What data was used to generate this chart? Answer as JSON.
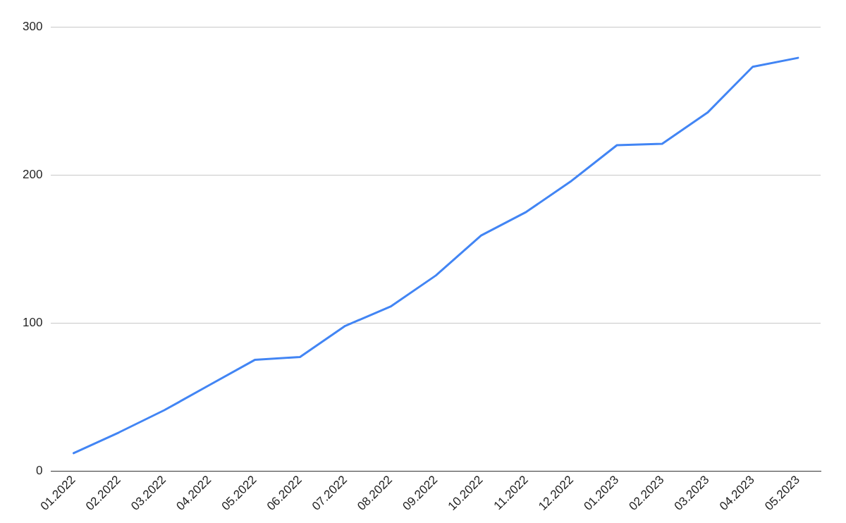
{
  "chart_data": {
    "type": "line",
    "categories": [
      "01.2022",
      "02.2022",
      "03.2022",
      "04.2022",
      "05.2022",
      "06.2022",
      "07.2022",
      "08.2022",
      "09.2022",
      "10.2022",
      "11.2022",
      "12.2022",
      "01.2023",
      "02.2023",
      "03.2023",
      "04.2023",
      "05.2023"
    ],
    "series": [
      {
        "color": "#4285f4",
        "values": [
          12,
          26,
          41,
          58,
          75,
          77,
          98,
          111,
          132,
          159,
          175,
          196,
          220,
          221,
          242,
          273,
          279
        ]
      }
    ],
    "ylim": [
      0,
      300
    ],
    "yticks": [
      0,
      100,
      200,
      300
    ],
    "grid": "y",
    "legend": false,
    "marker": "none",
    "line_style": "solid"
  }
}
